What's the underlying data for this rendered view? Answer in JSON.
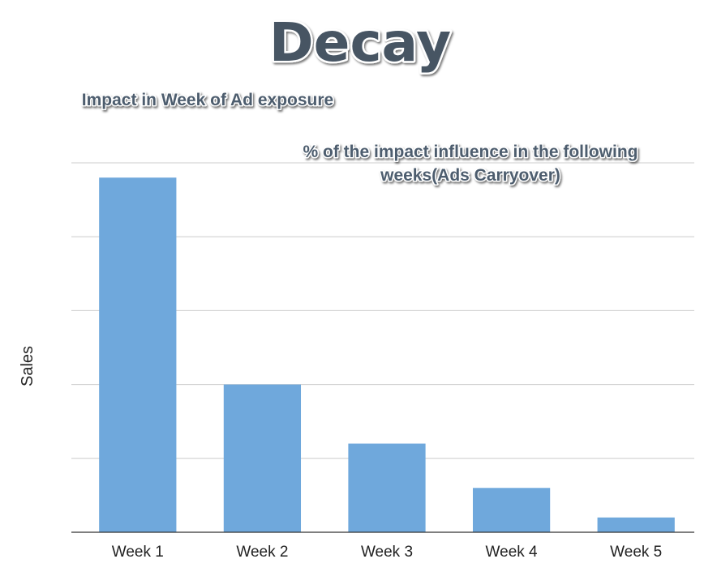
{
  "colors": {
    "bar": "#6fa8dc",
    "arrow": "#6fa8dc",
    "title_fill": "#465463",
    "annotation_fill": "#4d5d6e",
    "text_outline": "#ffffff",
    "gridline": "#cccccc",
    "axis": "#333333",
    "text": "#222222"
  },
  "chart_data": {
    "type": "bar",
    "title": "Decay",
    "xlabel": "",
    "ylabel": "Sales",
    "categories": [
      "Week 1",
      "Week 2",
      "Week 3",
      "Week 4",
      "Week 5"
    ],
    "values": [
      4.8,
      2.0,
      1.2,
      0.6,
      0.2
    ],
    "ylim": [
      0,
      5
    ],
    "grid": true,
    "show_y_tick_labels": false,
    "annotations": [
      {
        "id": "impact",
        "text": "Impact in Week of Ad exposure",
        "arrow": "down",
        "target_category": "Week 1"
      },
      {
        "id": "carryover",
        "text": [
          "% of the impact influence in the following",
          "weeks(Ads Carryover)"
        ],
        "arrow": "right",
        "from_category": "Week 2",
        "to_category": "Week 5"
      }
    ]
  }
}
